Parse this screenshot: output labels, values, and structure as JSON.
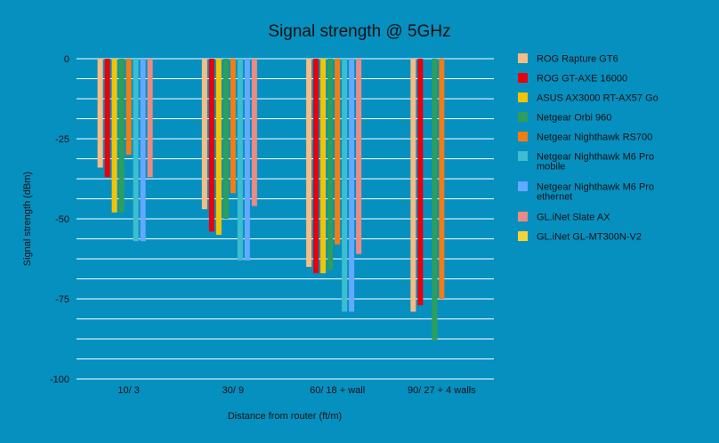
{
  "chart_data": {
    "type": "bar",
    "title": "Signal strength @ 5GHz",
    "xlabel": "Distance from router (ft/m)",
    "ylabel": "Signal strength (dBm)",
    "categories": [
      "10/ 3",
      "30/ 9",
      "60/ 18 + wall",
      "90/ 27 + 4 walls"
    ],
    "ylim": [
      -100,
      0
    ],
    "yticks": [
      0,
      -25,
      -50,
      -75,
      -100
    ],
    "grid": true,
    "legend_position": "right",
    "series": [
      {
        "name": "ROG Rapture GT6",
        "color": "#f5bd84",
        "values": [
          -34,
          -47,
          -65,
          -79
        ]
      },
      {
        "name": "ROG GT-AXE 16000",
        "color": "#e8000b",
        "values": [
          -37,
          -54,
          -67,
          -77
        ]
      },
      {
        "name": "ASUS AX3000 RT-AX57 Go",
        "color": "#f5c400",
        "values": [
          -48,
          -55,
          -67,
          null
        ]
      },
      {
        "name": "Netgear Orbi 960",
        "color": "#2e9e5a",
        "values": [
          -48,
          -50,
          -66,
          -88
        ]
      },
      {
        "name": "Netgear Nighthawk RS700",
        "color": "#f47c14",
        "values": [
          -30,
          -42,
          -58,
          -75
        ]
      },
      {
        "name": "Netgear Nighthawk M6 Pro mobile",
        "color": "#3dbdcf",
        "values": [
          -57,
          -63,
          -79,
          null
        ]
      },
      {
        "name": "Netgear Nighthawk M6 Pro ethernet",
        "color": "#62a9ff",
        "values": [
          -57,
          -63,
          -79,
          null
        ]
      },
      {
        "name": "GL.iNet Slate AX",
        "color": "#ec8a84",
        "values": [
          -37,
          -46,
          -61,
          null
        ]
      },
      {
        "name": "GL.iNet GL-MT300N-V2",
        "color": "#f7d338",
        "values": [
          null,
          null,
          null,
          null
        ]
      }
    ],
    "legend_lines": [
      [
        "ROG Rapture GT6"
      ],
      [
        "ROG GT-AXE 16000"
      ],
      [
        "ASUS AX3000 RT-AX57 Go"
      ],
      [
        "Netgear Orbi 960"
      ],
      [
        "Netgear Nighthawk RS700"
      ],
      [
        "Netgear Nighthawk M6 Pro",
        "mobile"
      ],
      [
        "Netgear Nighthawk M6 Pro",
        "ethernet"
      ],
      [
        "GL.iNet Slate AX"
      ],
      [
        "GL.iNet GL-MT300N-V2"
      ]
    ]
  }
}
